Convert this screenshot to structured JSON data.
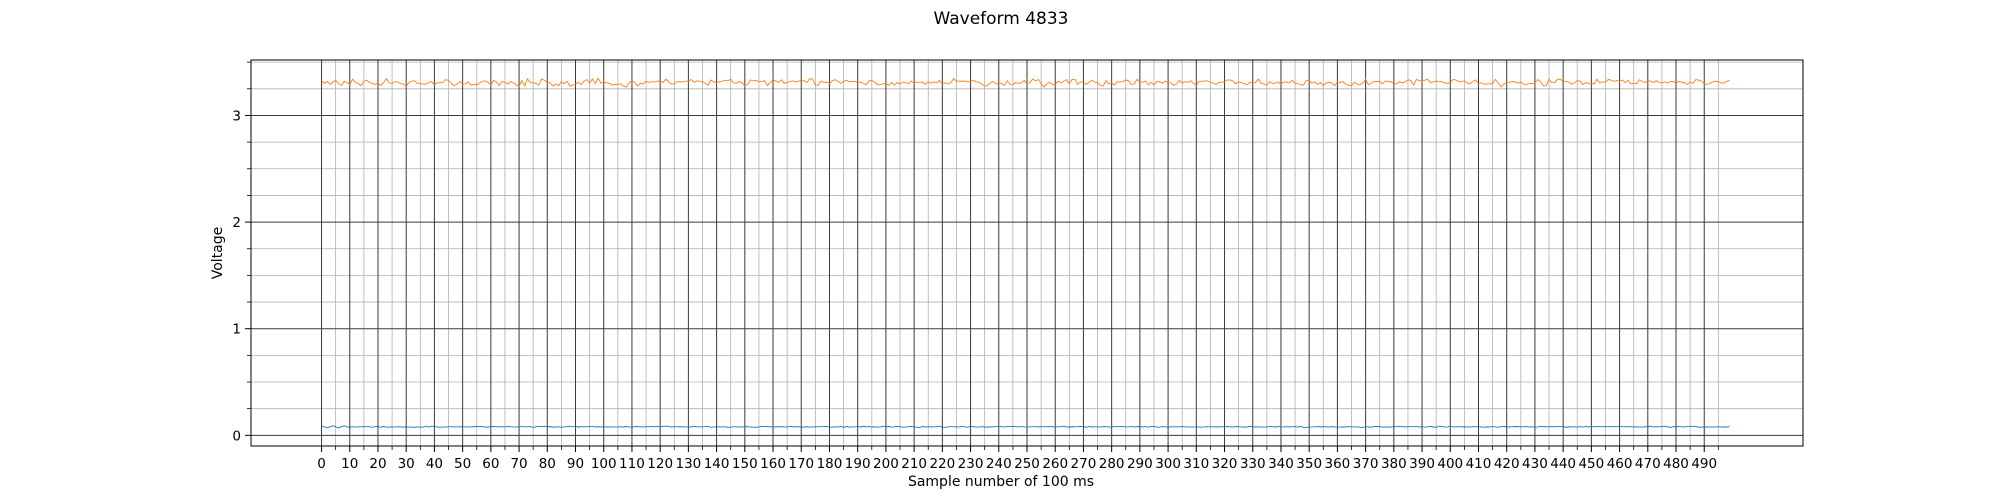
{
  "chart_data": {
    "type": "line",
    "title": "Waveform 4833",
    "xlabel": "Sample number of 100 ms",
    "ylabel": "Voltage",
    "xlim": [
      -25,
      525
    ],
    "ylim": [
      -0.1,
      3.52
    ],
    "x_ticks": [
      0,
      10,
      20,
      30,
      40,
      50,
      60,
      70,
      80,
      90,
      100,
      110,
      120,
      130,
      140,
      150,
      160,
      170,
      180,
      190,
      200,
      210,
      220,
      230,
      240,
      250,
      260,
      270,
      280,
      290,
      300,
      310,
      320,
      330,
      340,
      350,
      360,
      370,
      380,
      390,
      400,
      410,
      420,
      430,
      440,
      450,
      460,
      470,
      480,
      490
    ],
    "x_tick_labels": [
      "0",
      "10",
      "20",
      "30",
      "40",
      "50",
      "60",
      "70",
      "80",
      "90",
      "100",
      "110",
      "120",
      "130",
      "140",
      "150",
      "160",
      "170",
      "180",
      "190",
      "200",
      "210",
      "220",
      "230",
      "240",
      "250",
      "260",
      "270",
      "280",
      "290",
      "300",
      "310",
      "320",
      "330",
      "340",
      "350",
      "360",
      "370",
      "380",
      "390",
      "400",
      "410",
      "420",
      "430",
      "440",
      "450",
      "460",
      "470",
      "480",
      "490"
    ],
    "y_ticks": [
      0,
      1,
      2,
      3
    ],
    "y_tick_labels": [
      "0",
      "1",
      "2",
      "3"
    ],
    "y_minor_step": 0.25,
    "x_minor_step": 5,
    "grid": true,
    "legend": "none",
    "n_samples": 500,
    "series": [
      {
        "color": "#ff7f0e",
        "y_start": [
          3.33,
          3.3,
          3.32,
          3.29,
          3.31,
          3.33,
          3.3,
          3.28,
          3.32,
          3.31,
          3.29,
          3.34,
          3.31,
          3.3,
          3.28,
          3.32,
          3.33,
          3.31,
          3.3,
          3.29
        ],
        "y_mean": 3.31,
        "y_min": 3.25,
        "y_max": 3.38
      },
      {
        "color": "#1f77b4",
        "y_start": [
          0.09,
          0.08,
          0.07,
          0.08,
          0.09,
          0.08,
          0.07,
          0.08,
          0.09,
          0.08
        ],
        "y_mean": 0.08,
        "y_min": 0.07,
        "y_max": 0.09
      }
    ]
  }
}
